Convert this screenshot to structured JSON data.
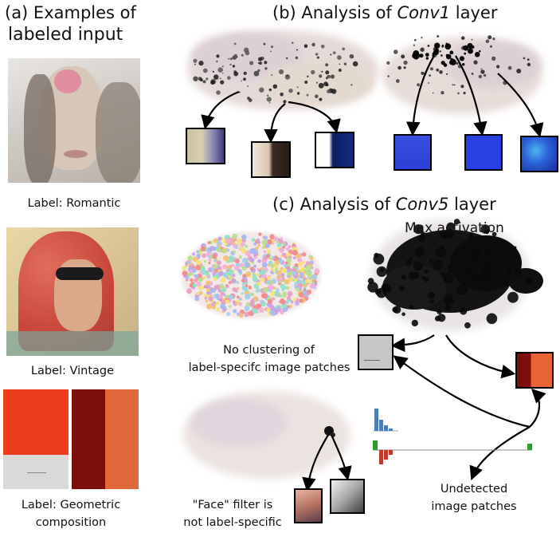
{
  "panel_a": {
    "title_line1": "(a) Examples of",
    "title_line2": "labeled input",
    "examples": [
      {
        "label": "Label: Romantic"
      },
      {
        "label": "Label: Vintage"
      },
      {
        "label_line1": "Label: Geometric",
        "label_line2": "composition"
      }
    ]
  },
  "panel_b": {
    "title_prefix": "(b) Analysis of ",
    "title_layer": "Conv1",
    "title_suffix": " layer"
  },
  "panel_c": {
    "title_prefix": "(c) Analysis of ",
    "title_layer": "Conv5",
    "title_suffix": " layer",
    "max_activation": "Max activation",
    "no_clustering_line1": "No clustering of",
    "no_clustering_line2": "label-specifc image patches",
    "face_line1": "\"Face\" filter is",
    "face_line2": "not label-specific",
    "undetected_line1": "Undetected",
    "undetected_line2": "image patches"
  },
  "colors": {
    "accent_blue": "#2b3fd6",
    "bar_blue": "#4a7fb5",
    "bar_red": "#c0392b",
    "bar_green": "#2ca02c"
  }
}
